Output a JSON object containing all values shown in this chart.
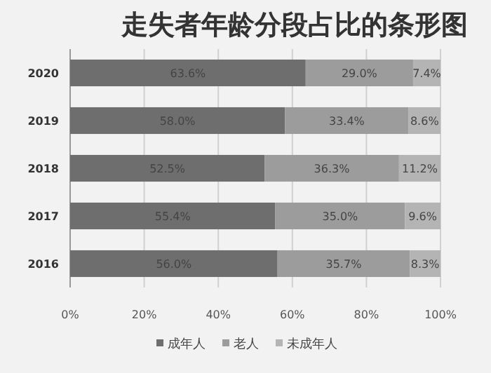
{
  "chart_data": {
    "type": "bar",
    "title": "走失者年龄分段占比的条形图",
    "orientation": "horizontal",
    "stacked": true,
    "categories": [
      "2020",
      "2019",
      "2018",
      "2017",
      "2016"
    ],
    "series": [
      {
        "name": "成年人",
        "color": "#6e6e6e",
        "values": [
          63.6,
          58.0,
          52.5,
          55.4,
          56.0
        ],
        "value_labels": [
          "63.6%",
          "58.0%",
          "52.5%",
          "55.4%",
          "56.0%"
        ]
      },
      {
        "name": "老人",
        "color": "#9c9c9c",
        "values": [
          29.0,
          33.4,
          36.3,
          35.0,
          35.7
        ],
        "value_labels": [
          "29.0%",
          "33.4%",
          "36.3%",
          "35.0%",
          "35.7%"
        ]
      },
      {
        "name": "未成年人",
        "color": "#b4b4b4",
        "values": [
          7.4,
          8.6,
          11.2,
          9.6,
          8.3
        ],
        "value_labels": [
          "7.4%",
          "8.6%",
          "11.2%",
          "9.6%",
          "8.3%"
        ]
      }
    ],
    "xlim": [
      0,
      100
    ],
    "xticks": [
      {
        "value": 0,
        "label": "0%"
      },
      {
        "value": 20,
        "label": "20%"
      },
      {
        "value": 40,
        "label": "40%"
      },
      {
        "value": 60,
        "label": "60%"
      },
      {
        "value": 80,
        "label": "80%"
      },
      {
        "value": 100,
        "label": "100%"
      }
    ],
    "grid": "x",
    "legend": "bottom"
  }
}
